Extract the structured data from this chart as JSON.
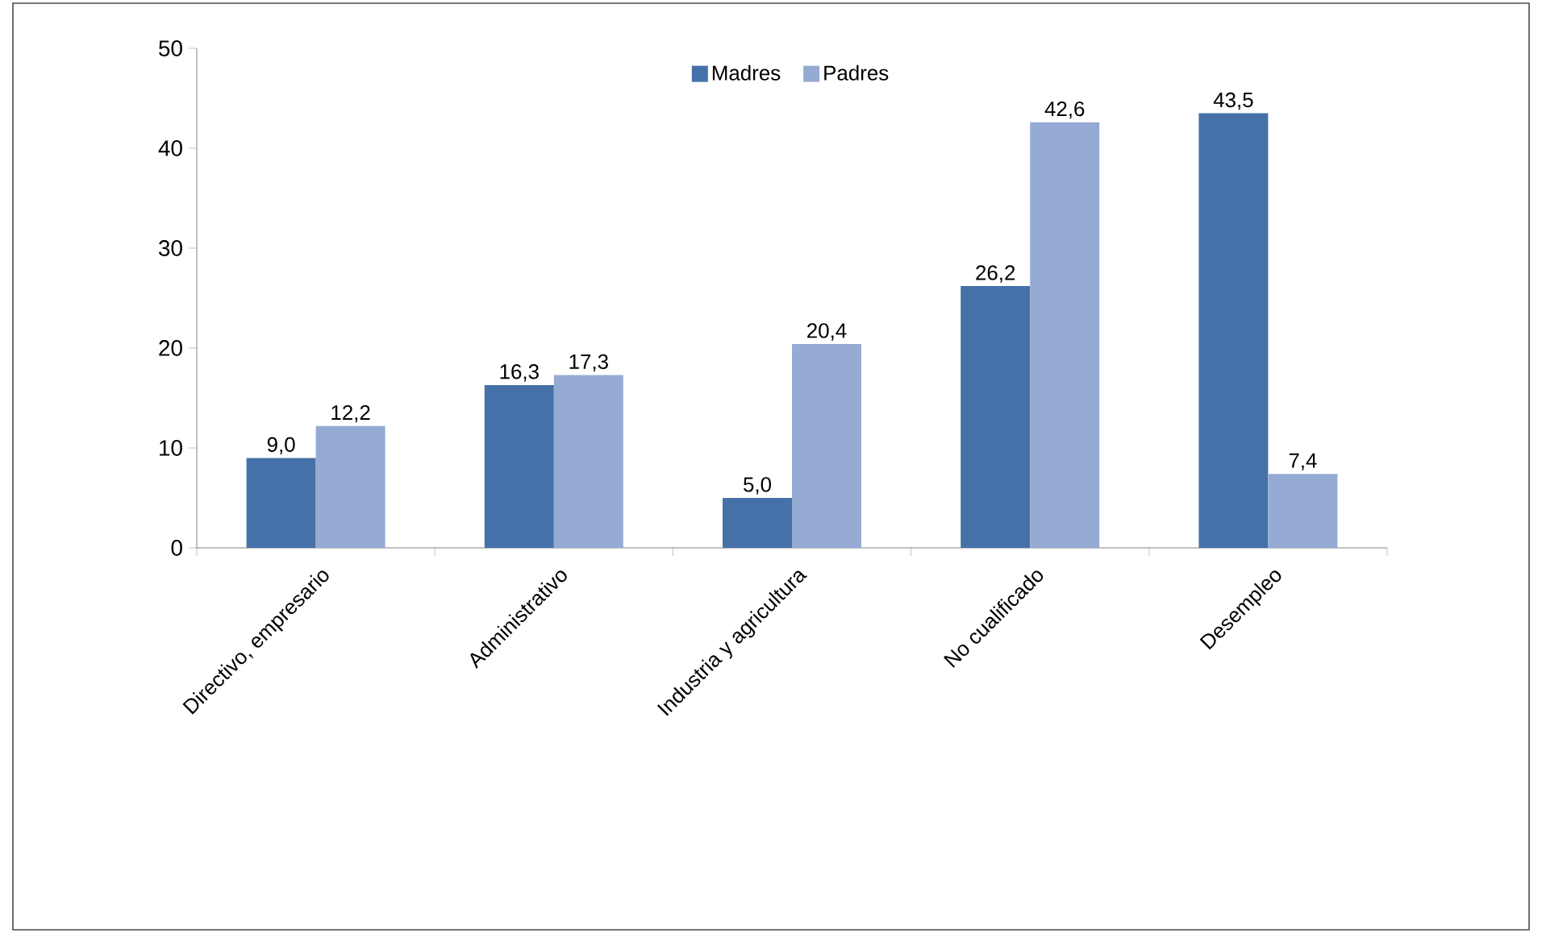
{
  "chart_data": {
    "type": "bar",
    "categories": [
      "Directivo, empresario",
      "Administrativo",
      "Industria y agricultura",
      "No cualificado",
      "Desempleo"
    ],
    "series": [
      {
        "name": "Madres",
        "color": "#4571a8",
        "values": [
          9.0,
          16.3,
          5.0,
          26.2,
          43.5
        ],
        "value_labels": [
          "9,0",
          "16,3",
          "5,0",
          "26,2",
          "43,5"
        ]
      },
      {
        "name": "Padres",
        "color": "#96abd3",
        "values": [
          12.2,
          17.3,
          20.4,
          42.6,
          7.4
        ],
        "value_labels": [
          "12,2",
          "17,3",
          "20,4",
          "42,6",
          "7,4"
        ]
      }
    ],
    "ylim": [
      0,
      50
    ],
    "yticks": [
      0,
      10,
      20,
      30,
      40,
      50
    ],
    "grid": false,
    "legend": "top"
  }
}
